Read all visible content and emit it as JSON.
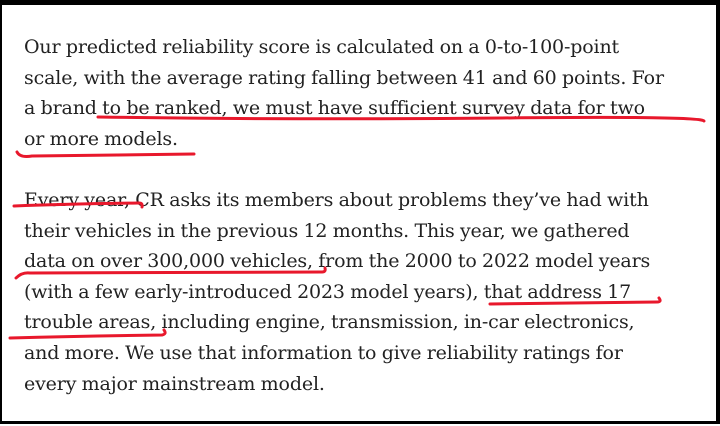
{
  "paragraphs": [
    {
      "lines": [
        "Our predicted reliability score is calculated on a 0-to-100-point",
        "scale, with the average rating falling between 41 and 60 points. For",
        "a brand to be ranked, we must have sufficient survey data for two",
        "or more models."
      ]
    },
    {
      "lines": [
        "Every year, CR asks its members about problems they’ve had with",
        "their vehicles in the previous 12 months. This year, we gathered",
        "data on over 300,000 vehicles, from the 2000 to 2022 model years",
        "(with a few early-introduced 2023 model years), that address 17",
        "trouble areas, including engine, transmission, in-car electronics,",
        "and more. We use that information to give reliability ratings for",
        "every major mainstream model."
      ]
    }
  ],
  "underlines": [
    {
      "text": "to be ranked, we must have sufficient survey data for two"
    },
    {
      "text": "or more models."
    },
    {
      "text": "Every year,"
    },
    {
      "text": "data on over 300,000 vehicles"
    },
    {
      "text": "that address 17"
    },
    {
      "text": "trouble areas,"
    }
  ],
  "colors": {
    "text": "#222222",
    "underline": "#e8182c",
    "border": "#000000"
  }
}
